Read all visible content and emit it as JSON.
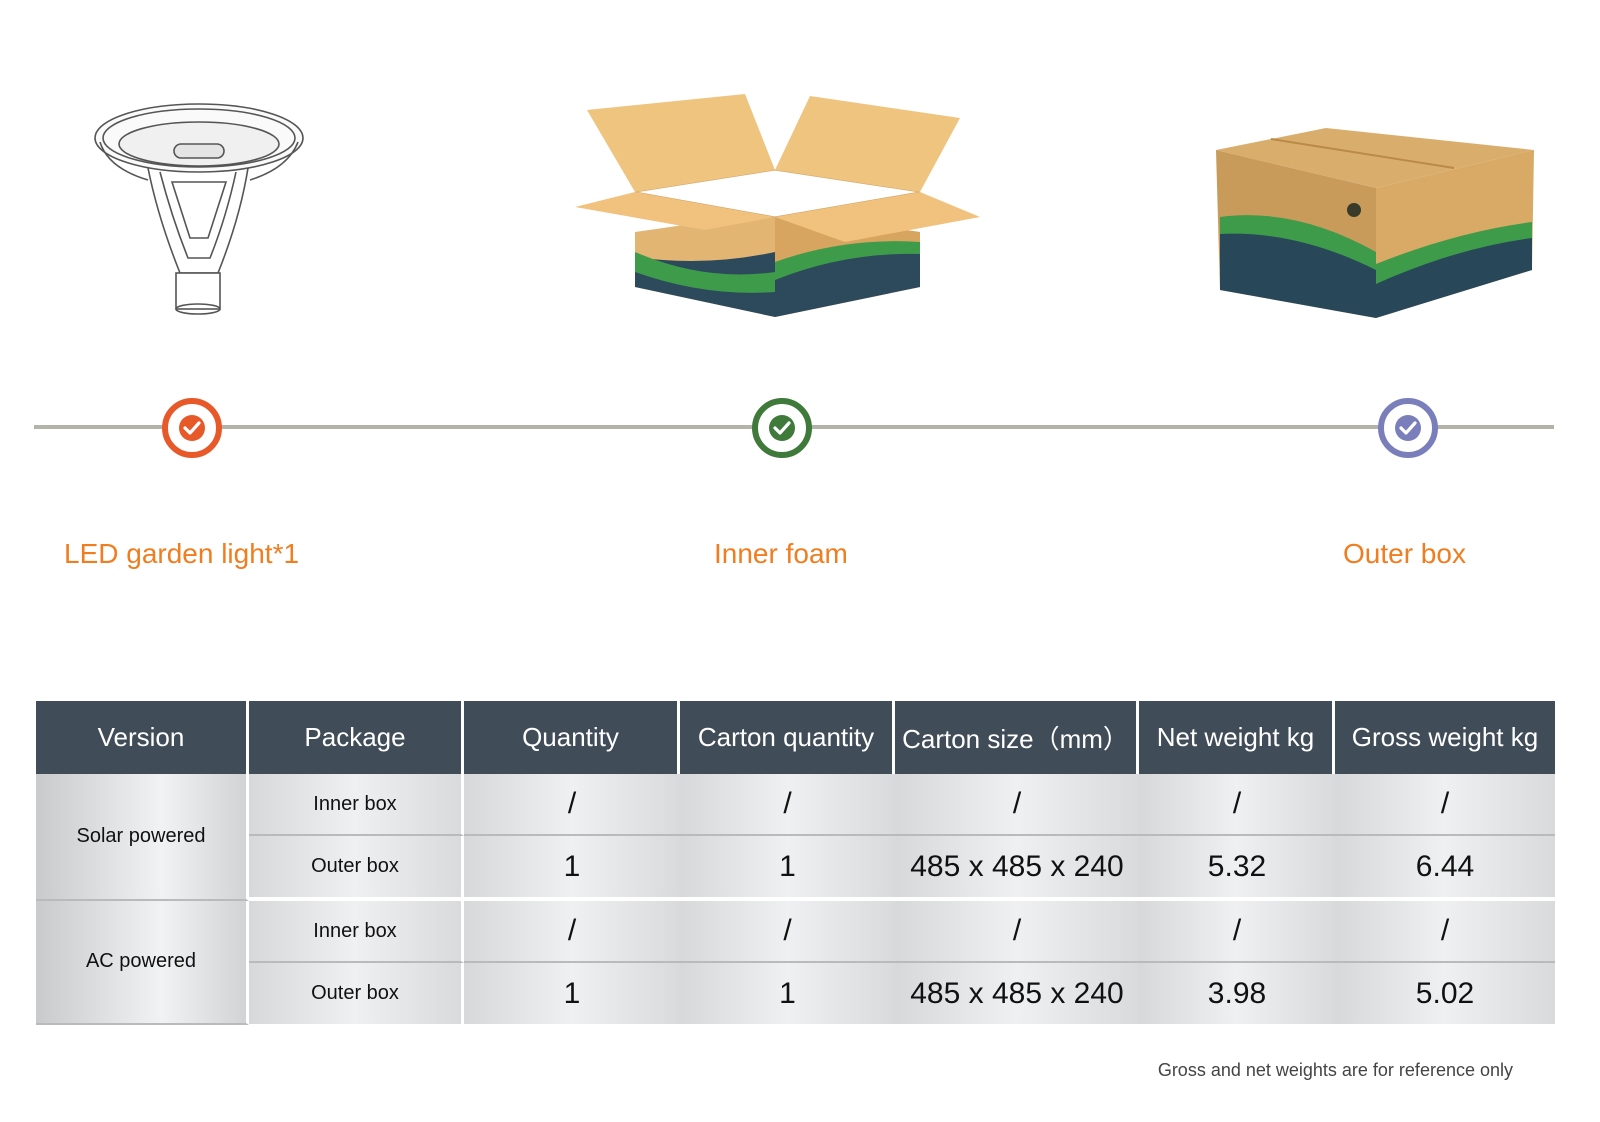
{
  "illustrations": {
    "light": "led-garden-light-drawing",
    "open_box": "open-cardboard-box",
    "closed_box": "closed-cardboard-box"
  },
  "steps": [
    {
      "label": "LED garden light*1",
      "color": "#e8592a",
      "icon": "check-icon"
    },
    {
      "label": "Inner foam",
      "color": "#3f7a3a",
      "icon": "check-icon"
    },
    {
      "label": "Outer box",
      "color": "#7a7fbc",
      "icon": "check-icon"
    }
  ],
  "colors": {
    "label": "#f07d1f",
    "header_bg": "#404c58",
    "timeline": "#b3b3a8"
  },
  "table": {
    "headers": [
      "Version",
      "Package",
      "Quantity",
      "Carton quantity",
      "Carton size（mm）",
      "Net weight kg",
      "Gross weight kg"
    ],
    "groups": [
      {
        "version": "Solar powered",
        "rows": [
          {
            "package": "Inner box",
            "quantity": "/",
            "carton_quantity": "/",
            "carton_size": "/",
            "net_weight": "/",
            "gross_weight": "/"
          },
          {
            "package": "Outer box",
            "quantity": "1",
            "carton_quantity": "1",
            "carton_size": "485 x 485 x 240",
            "net_weight": "5.32",
            "gross_weight": "6.44"
          }
        ]
      },
      {
        "version": "AC powered",
        "rows": [
          {
            "package": "Inner box",
            "quantity": "/",
            "carton_quantity": "/",
            "carton_size": "/",
            "net_weight": "/",
            "gross_weight": "/"
          },
          {
            "package": "Outer box",
            "quantity": "1",
            "carton_quantity": "1",
            "carton_size": "485 x 485 x 240",
            "net_weight": "3.98",
            "gross_weight": "5.02"
          }
        ]
      }
    ]
  },
  "footnote": "Gross and net weights are for reference only"
}
